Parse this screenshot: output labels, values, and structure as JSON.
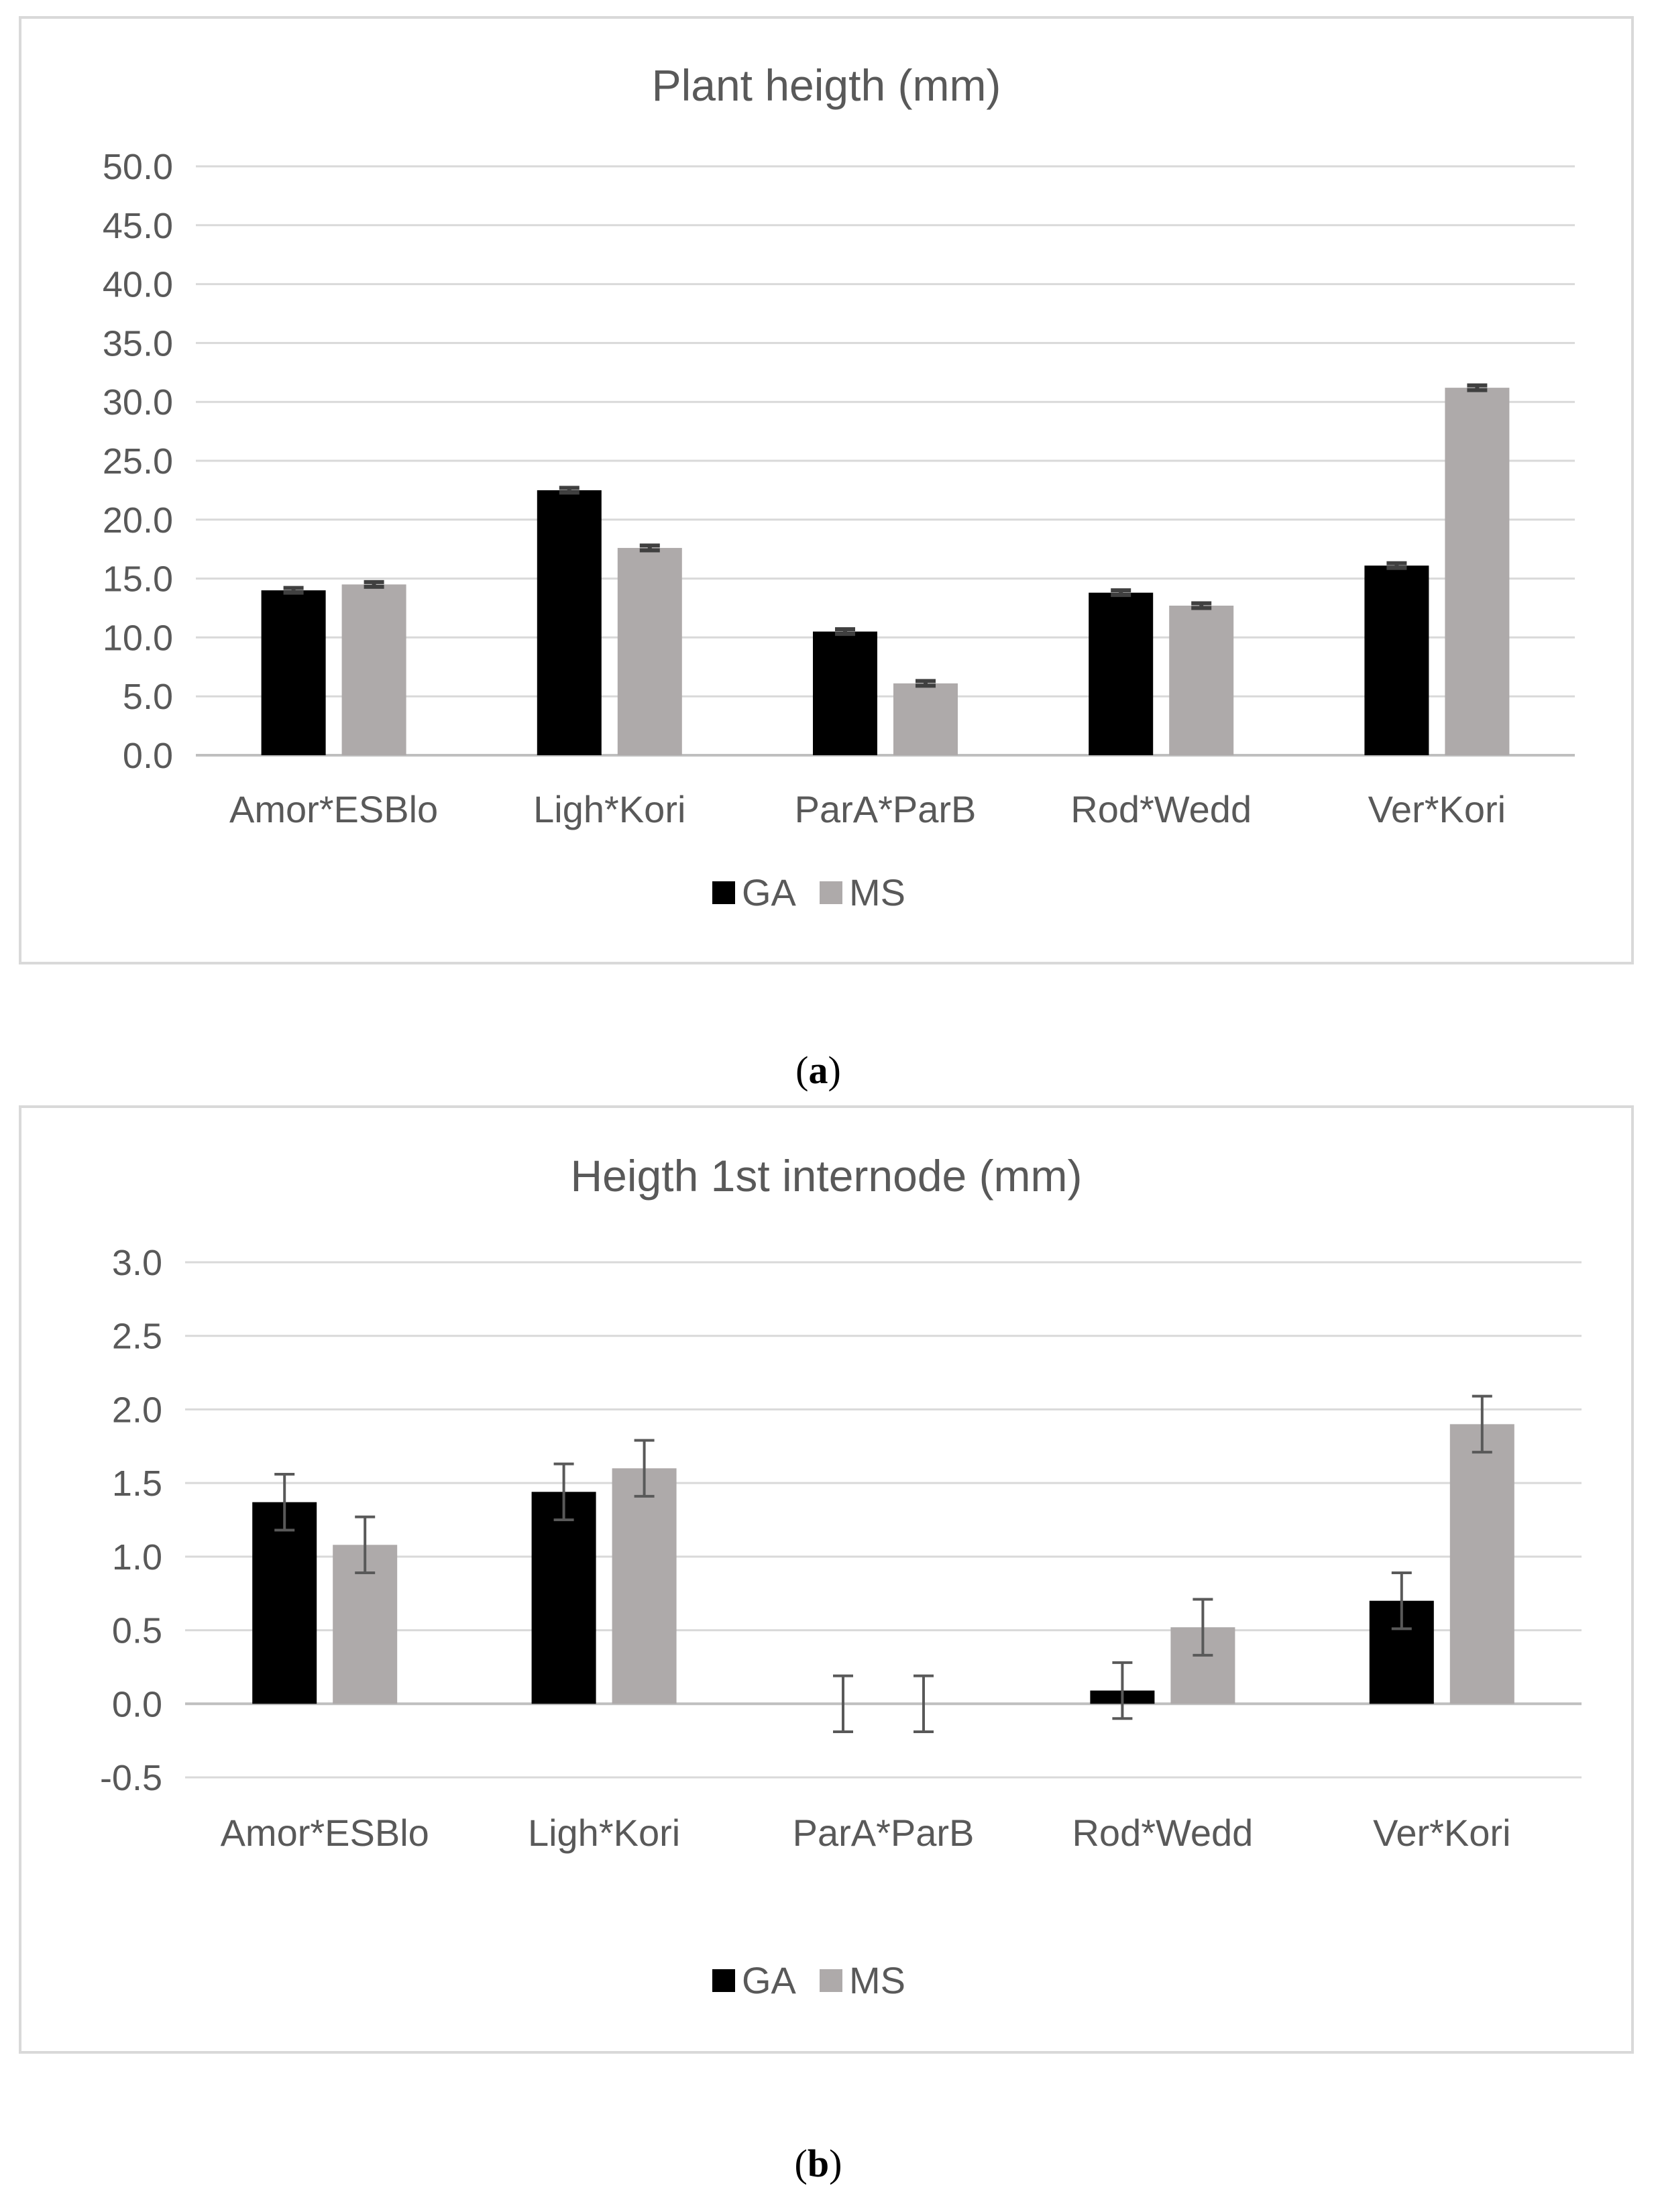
{
  "chart_data": [
    {
      "type": "bar",
      "title": "Plant heigth (mm)",
      "categories": [
        "Amor*ESBlo",
        "Ligh*Kori",
        "ParA*ParB",
        "Rod*Wedd",
        "Ver*Kori"
      ],
      "series": [
        {
          "name": "GA",
          "values": [
            14.0,
            22.5,
            10.5,
            13.8,
            16.1
          ],
          "errors": [
            0.2,
            0.2,
            0.2,
            0.2,
            0.2
          ],
          "color": "#000000"
        },
        {
          "name": "MS",
          "values": [
            14.5,
            17.6,
            6.1,
            12.7,
            31.2
          ],
          "errors": [
            0.2,
            0.2,
            0.2,
            0.2,
            0.2
          ],
          "color": "#aeaaaa"
        }
      ],
      "yticks": [
        "0.0",
        "5.0",
        "10.0",
        "15.0",
        "20.0",
        "25.0",
        "30.0",
        "35.0",
        "40.0",
        "45.0",
        "50.0"
      ],
      "ylim": [
        0,
        50
      ],
      "xlabel": "",
      "ylabel": "",
      "legend": "bottom",
      "grid": true,
      "caption_label": "a"
    },
    {
      "type": "bar",
      "title": "Heigth 1st internode (mm)",
      "categories": [
        "Amor*ESBlo",
        "Ligh*Kori",
        "ParA*ParB",
        "Rod*Wedd",
        "Ver*Kori"
      ],
      "series": [
        {
          "name": "GA",
          "values": [
            1.37,
            1.44,
            0.0,
            0.09,
            0.7
          ],
          "errors": [
            0.19,
            0.19,
            0.19,
            0.19,
            0.19
          ],
          "color": "#000000"
        },
        {
          "name": "MS",
          "values": [
            1.08,
            1.6,
            0.0,
            0.52,
            1.9
          ],
          "errors": [
            0.19,
            0.19,
            0.19,
            0.19,
            0.19
          ],
          "color": "#aeaaaa"
        }
      ],
      "yticks": [
        "-0.5",
        "0.0",
        "0.5",
        "1.0",
        "1.5",
        "2.0",
        "2.5",
        "3.0"
      ],
      "ylim": [
        -0.5,
        3.0
      ],
      "xlabel": "",
      "ylabel": "",
      "legend": "bottom",
      "grid": true,
      "caption_label": "b"
    }
  ],
  "captions": {
    "a": {
      "open": "(",
      "label": "a",
      "close": ")"
    },
    "b": {
      "open": "(",
      "label": "b",
      "close": ")"
    }
  }
}
